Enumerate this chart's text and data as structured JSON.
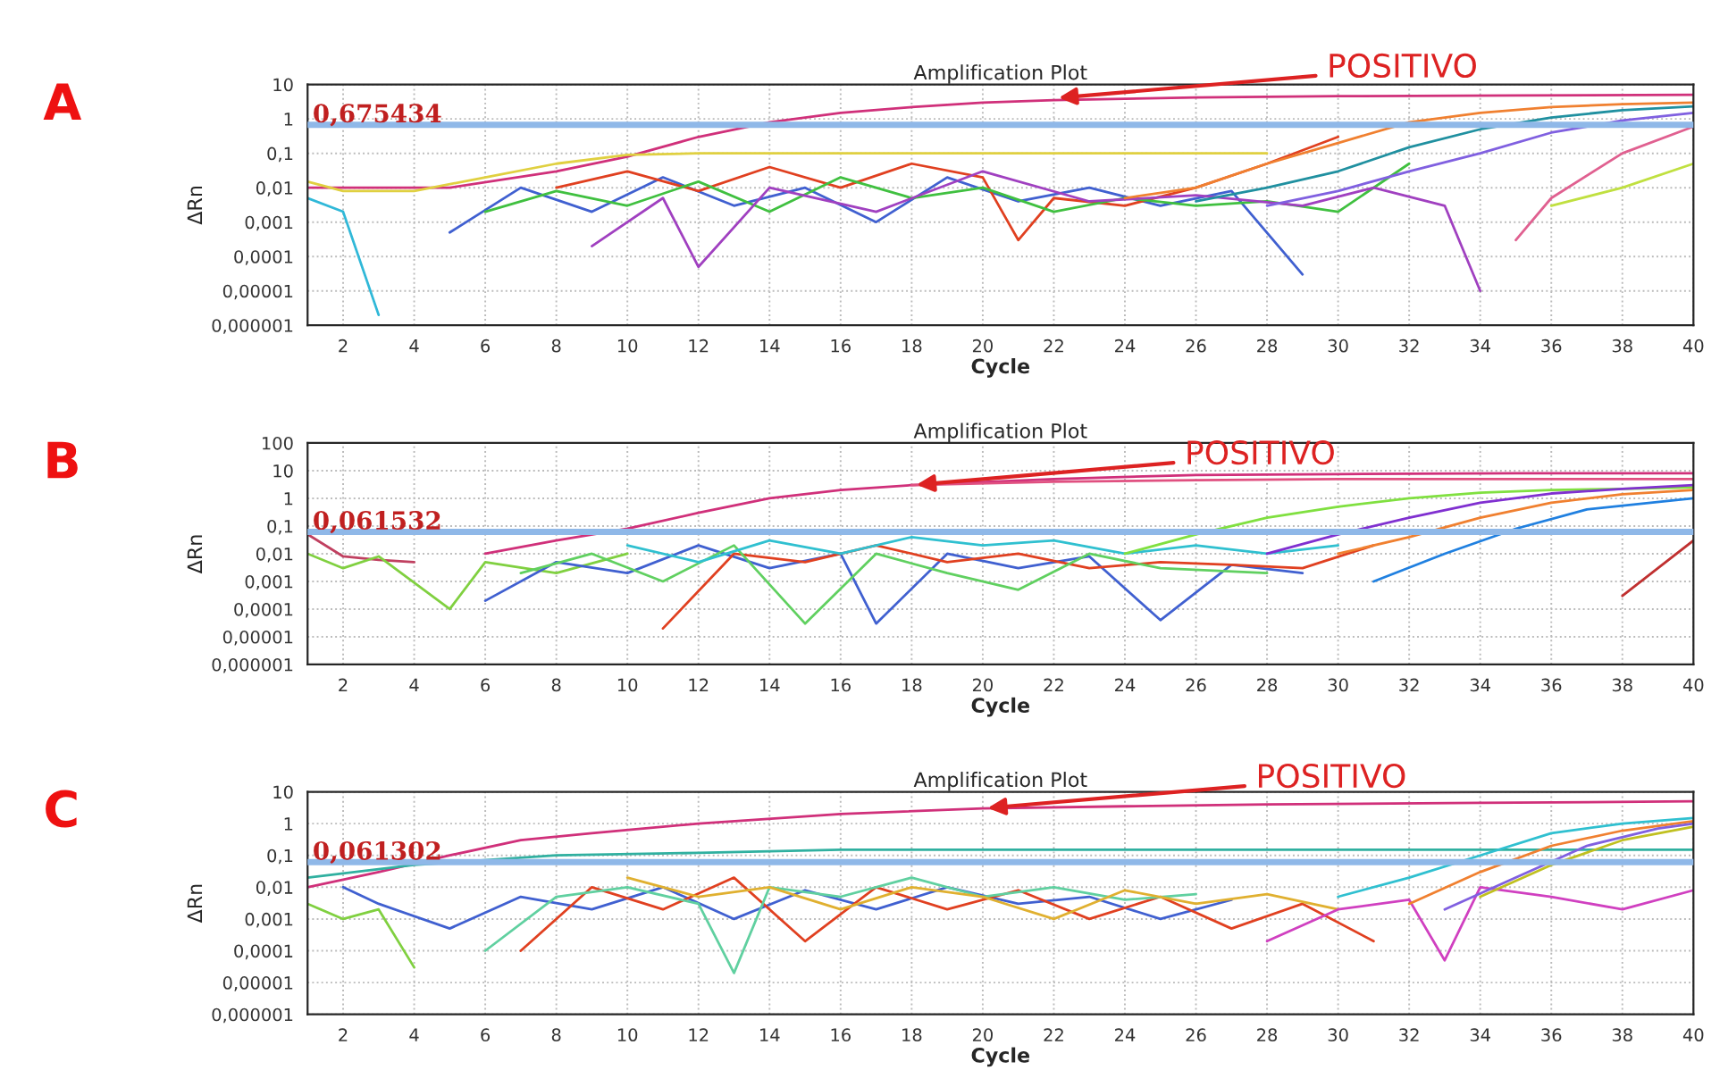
{
  "chart_data": [
    {
      "type": "line",
      "title": "Amplification Plot",
      "xlabel": "Cycle",
      "ylabel": "ΔRn",
      "log": "y",
      "grid": true,
      "xlim": [
        1,
        40
      ],
      "xticks": [
        2,
        4,
        6,
        8,
        10,
        12,
        14,
        16,
        18,
        20,
        22,
        24,
        26,
        28,
        30,
        32,
        34,
        36,
        38,
        40
      ],
      "ylim": [
        1e-06,
        10
      ],
      "yticks": [
        {
          "value": 1e-06,
          "label": "0,000001"
        },
        {
          "value": 1e-05,
          "label": "0,00001"
        },
        {
          "value": 0.0001,
          "label": "0,0001"
        },
        {
          "value": 0.001,
          "label": "0,001"
        },
        {
          "value": 0.01,
          "label": "0,01"
        },
        {
          "value": 0.1,
          "label": "0,1"
        },
        1,
        10
      ],
      "ref_lines": [
        {
          "axis": "y",
          "value": 0.675434,
          "label": "0,675434",
          "color": "#8fb8e8"
        }
      ],
      "annotations": [
        "A",
        {
          "text": "POSITIVO",
          "x": 22,
          "y": 4
        }
      ],
      "series": [
        {
          "color": "#d0307a",
          "x": [
            1,
            5,
            8,
            10,
            12,
            14,
            16,
            18,
            20,
            22,
            26,
            30,
            35,
            40
          ],
          "values": [
            0.01,
            0.01,
            0.03,
            0.08,
            0.3,
            0.8,
            1.5,
            2.2,
            3,
            3.5,
            4.2,
            4.6,
            4.8,
            5
          ]
        },
        {
          "color": "#e0d040",
          "x": [
            1,
            2,
            4,
            6,
            8,
            10,
            12,
            16,
            20,
            24,
            28
          ],
          "values": [
            0.015,
            0.008,
            0.008,
            0.02,
            0.05,
            0.09,
            0.1,
            0.1,
            0.1,
            0.1,
            0.1
          ]
        },
        {
          "color": "#30b8d8",
          "x": [
            1,
            2,
            3
          ],
          "values": [
            0.005,
            0.002,
            2e-06
          ]
        },
        {
          "color": "#4060d0",
          "x": [
            5,
            7,
            9,
            11,
            13,
            15,
            17,
            19,
            21,
            23,
            25,
            27,
            29
          ],
          "values": [
            0.0005,
            0.01,
            0.002,
            0.02,
            0.003,
            0.01,
            0.001,
            0.02,
            0.004,
            0.01,
            0.003,
            0.008,
            3e-05
          ]
        },
        {
          "color": "#e04020",
          "x": [
            8,
            10,
            12,
            14,
            16,
            18,
            20,
            21,
            22,
            24,
            26,
            28,
            30
          ],
          "values": [
            0.01,
            0.03,
            0.008,
            0.04,
            0.01,
            0.05,
            0.02,
            0.0003,
            0.005,
            0.003,
            0.01,
            0.05,
            0.3
          ]
        },
        {
          "color": "#40c040",
          "x": [
            6,
            8,
            10,
            12,
            14,
            16,
            18,
            20,
            22,
            24,
            26,
            28,
            30,
            32
          ],
          "values": [
            0.002,
            0.008,
            0.003,
            0.015,
            0.002,
            0.02,
            0.005,
            0.01,
            0.002,
            0.005,
            0.003,
            0.004,
            0.002,
            0.05
          ]
        },
        {
          "color": "#a040c0",
          "x": [
            9,
            11,
            12,
            14,
            17,
            20,
            23,
            26,
            29,
            31,
            33,
            34
          ],
          "values": [
            0.0002,
            0.005,
            5e-05,
            0.01,
            0.002,
            0.03,
            0.004,
            0.006,
            0.003,
            0.01,
            0.003,
            1e-05
          ]
        },
        {
          "color": "#f08030",
          "x": [
            24,
            26,
            28,
            30,
            32,
            34,
            36,
            38,
            40
          ],
          "values": [
            0.005,
            0.01,
            0.05,
            0.2,
            0.8,
            1.5,
            2.2,
            2.7,
            3
          ]
        },
        {
          "color": "#2090a0",
          "x": [
            26,
            28,
            30,
            32,
            34,
            36,
            38,
            40
          ],
          "values": [
            0.004,
            0.01,
            0.03,
            0.15,
            0.5,
            1.1,
            1.8,
            2.3
          ]
        },
        {
          "color": "#8060e0",
          "x": [
            28,
            30,
            32,
            34,
            36,
            38,
            40
          ],
          "values": [
            0.003,
            0.008,
            0.03,
            0.1,
            0.4,
            0.9,
            1.5
          ]
        },
        {
          "color": "#e06090",
          "x": [
            35,
            36,
            38,
            40
          ],
          "values": [
            0.0003,
            0.005,
            0.1,
            0.6
          ]
        },
        {
          "color": "#c0e040",
          "x": [
            36,
            38,
            40
          ],
          "values": [
            0.003,
            0.01,
            0.05
          ]
        }
      ]
    },
    {
      "type": "line",
      "title": "Amplification Plot",
      "xlabel": "Cycle",
      "ylabel": "ΔRn",
      "log": "y",
      "grid": true,
      "xlim": [
        1,
        40
      ],
      "xticks": [
        2,
        4,
        6,
        8,
        10,
        12,
        14,
        16,
        18,
        20,
        22,
        24,
        26,
        28,
        30,
        32,
        34,
        36,
        38,
        40
      ],
      "ylim": [
        1e-06,
        100
      ],
      "yticks": [
        {
          "value": 1e-06,
          "label": "0,000001"
        },
        {
          "value": 1e-05,
          "label": "0,00001"
        },
        {
          "value": 0.0001,
          "label": "0,0001"
        },
        {
          "value": 0.001,
          "label": "0,001"
        },
        {
          "value": 0.01,
          "label": "0,01"
        },
        {
          "value": 0.1,
          "label": "0,1"
        },
        1,
        10,
        100
      ],
      "ref_lines": [
        {
          "axis": "y",
          "value": 0.061532,
          "label": "0,061532",
          "color": "#8fb8e8"
        }
      ],
      "annotations": [
        "B",
        {
          "text": "POSITIVO",
          "x": 18,
          "y": 3
        }
      ],
      "series": [
        {
          "color": "#d0307a",
          "x": [
            6,
            8,
            10,
            12,
            14,
            16,
            18,
            22,
            26,
            30,
            35,
            40
          ],
          "values": [
            0.01,
            0.03,
            0.08,
            0.3,
            1,
            2,
            3,
            5,
            7,
            7.5,
            8,
            8
          ]
        },
        {
          "color": "#e05080",
          "x": [
            18,
            22,
            26,
            30,
            35,
            40
          ],
          "values": [
            3,
            4,
            4.5,
            5,
            5,
            5
          ]
        },
        {
          "color": "#c04060",
          "x": [
            1,
            2,
            3,
            4
          ],
          "values": [
            0.05,
            0.008,
            0.006,
            0.005
          ]
        },
        {
          "color": "#80d040",
          "x": [
            1,
            2,
            3,
            5,
            6,
            8,
            10
          ],
          "values": [
            0.01,
            0.003,
            0.008,
            0.0001,
            0.005,
            0.002,
            0.01
          ]
        },
        {
          "color": "#4060d0",
          "x": [
            6,
            8,
            10,
            12,
            14,
            16,
            17,
            19,
            21,
            23,
            25,
            27,
            29
          ],
          "values": [
            0.0002,
            0.005,
            0.002,
            0.02,
            0.003,
            0.01,
            3e-05,
            0.01,
            0.003,
            0.008,
            4e-05,
            0.004,
            0.002
          ]
        },
        {
          "color": "#e04020",
          "x": [
            11,
            13,
            15,
            17,
            19,
            21,
            23,
            25,
            27,
            29,
            31
          ],
          "values": [
            2e-05,
            0.01,
            0.005,
            0.02,
            0.005,
            0.01,
            0.003,
            0.005,
            0.004,
            0.003,
            0.02
          ]
        },
        {
          "color": "#60d060",
          "x": [
            7,
            9,
            11,
            13,
            15,
            17,
            19,
            21,
            23,
            25,
            28
          ],
          "values": [
            0.002,
            0.01,
            0.001,
            0.02,
            3e-05,
            0.01,
            0.002,
            0.0005,
            0.01,
            0.003,
            0.002
          ]
        },
        {
          "color": "#30c0d0",
          "x": [
            10,
            12,
            14,
            16,
            18,
            20,
            22,
            24,
            26,
            28,
            30
          ],
          "values": [
            0.02,
            0.005,
            0.03,
            0.01,
            0.04,
            0.02,
            0.03,
            0.01,
            0.02,
            0.01,
            0.02
          ]
        },
        {
          "color": "#80e040",
          "x": [
            24,
            26,
            28,
            30,
            32,
            34,
            36,
            38,
            40
          ],
          "values": [
            0.01,
            0.05,
            0.2,
            0.5,
            1,
            1.6,
            2,
            2.2,
            2.5
          ]
        },
        {
          "color": "#8030d0",
          "x": [
            28,
            30,
            32,
            34,
            36,
            38,
            40
          ],
          "values": [
            0.01,
            0.05,
            0.2,
            0.7,
            1.5,
            2.2,
            3
          ]
        },
        {
          "color": "#f08030",
          "x": [
            30,
            32,
            34,
            36,
            38,
            40
          ],
          "values": [
            0.01,
            0.04,
            0.2,
            0.7,
            1.4,
            2
          ]
        },
        {
          "color": "#2080e0",
          "x": [
            31,
            33,
            35,
            37,
            40
          ],
          "values": [
            0.001,
            0.01,
            0.08,
            0.4,
            1
          ]
        },
        {
          "color": "#c03030",
          "x": [
            38,
            39,
            40
          ],
          "values": [
            0.0003,
            0.003,
            0.03
          ]
        }
      ]
    },
    {
      "type": "line",
      "title": "Amplification Plot",
      "xlabel": "Cycle",
      "ylabel": "ΔRn",
      "log": "y",
      "grid": true,
      "xlim": [
        1,
        40
      ],
      "xticks": [
        2,
        4,
        6,
        8,
        10,
        12,
        14,
        16,
        18,
        20,
        22,
        24,
        26,
        28,
        30,
        32,
        34,
        36,
        38,
        40
      ],
      "ylim": [
        1e-06,
        10
      ],
      "yticks": [
        {
          "value": 1e-06,
          "label": "0,000001"
        },
        {
          "value": 1e-05,
          "label": "0,00001"
        },
        {
          "value": 0.0001,
          "label": "0,0001"
        },
        {
          "value": 0.001,
          "label": "0,001"
        },
        {
          "value": 0.01,
          "label": "0,01"
        },
        {
          "value": 0.1,
          "label": "0,1"
        },
        1,
        10
      ],
      "ref_lines": [
        {
          "axis": "y",
          "value": 0.061302,
          "label": "0,061302",
          "color": "#8fb8e8"
        }
      ],
      "annotations": [
        "C",
        {
          "text": "POSITIVO",
          "x": 20,
          "y": 3
        }
      ],
      "series": [
        {
          "color": "#d0307a",
          "x": [
            1,
            3,
            5,
            7,
            9,
            12,
            16,
            20,
            24,
            28,
            34,
            40
          ],
          "values": [
            0.01,
            0.03,
            0.1,
            0.3,
            0.5,
            1,
            2,
            3,
            3.5,
            4,
            4.5,
            5
          ]
        },
        {
          "color": "#30b0a0",
          "x": [
            1,
            4,
            8,
            12,
            16,
            20,
            24,
            28,
            32,
            36,
            40
          ],
          "values": [
            0.02,
            0.05,
            0.1,
            0.12,
            0.15,
            0.15,
            0.15,
            0.15,
            0.15,
            0.15,
            0.15
          ]
        },
        {
          "color": "#80d040",
          "x": [
            1,
            2,
            3,
            4
          ],
          "values": [
            0.003,
            0.001,
            0.002,
            3e-05
          ]
        },
        {
          "color": "#4060d0",
          "x": [
            2,
            3,
            5,
            7,
            9,
            11,
            13,
            15,
            17,
            19,
            21,
            23,
            25,
            27
          ],
          "values": [
            0.01,
            0.003,
            0.0005,
            0.005,
            0.002,
            0.01,
            0.001,
            0.008,
            0.002,
            0.01,
            0.003,
            0.005,
            0.001,
            0.004
          ]
        },
        {
          "color": "#e04020",
          "x": [
            7,
            9,
            11,
            13,
            15,
            17,
            19,
            21,
            23,
            25,
            27,
            29,
            31
          ],
          "values": [
            0.0001,
            0.01,
            0.002,
            0.02,
            0.0002,
            0.01,
            0.002,
            0.008,
            0.001,
            0.005,
            0.0005,
            0.003,
            0.0002
          ]
        },
        {
          "color": "#60d0a0",
          "x": [
            6,
            8,
            10,
            12,
            13,
            14,
            16,
            18,
            20,
            22,
            24,
            26
          ],
          "values": [
            0.0001,
            0.005,
            0.01,
            0.003,
            2e-05,
            0.01,
            0.005,
            0.02,
            0.005,
            0.01,
            0.004,
            0.006
          ]
        },
        {
          "color": "#e0b030",
          "x": [
            10,
            12,
            14,
            16,
            18,
            20,
            22,
            24,
            26,
            28,
            30
          ],
          "values": [
            0.02,
            0.005,
            0.01,
            0.002,
            0.01,
            0.005,
            0.001,
            0.008,
            0.003,
            0.006,
            0.002
          ]
        },
        {
          "color": "#d040c0",
          "x": [
            28,
            30,
            32,
            33,
            34,
            36,
            38,
            40
          ],
          "values": [
            0.0002,
            0.002,
            0.004,
            5e-05,
            0.01,
            0.005,
            0.002,
            0.008
          ]
        },
        {
          "color": "#30c0d0",
          "x": [
            30,
            32,
            34,
            36,
            38,
            40
          ],
          "values": [
            0.005,
            0.02,
            0.1,
            0.5,
            1,
            1.5
          ]
        },
        {
          "color": "#f08030",
          "x": [
            32,
            34,
            36,
            38,
            40
          ],
          "values": [
            0.003,
            0.03,
            0.2,
            0.6,
            1.2
          ]
        },
        {
          "color": "#8060e0",
          "x": [
            33,
            35,
            37,
            39,
            40
          ],
          "values": [
            0.002,
            0.02,
            0.2,
            0.7,
            1
          ]
        },
        {
          "color": "#c0c020",
          "x": [
            34,
            36,
            38,
            40
          ],
          "values": [
            0.005,
            0.05,
            0.3,
            0.8
          ]
        }
      ]
    }
  ]
}
